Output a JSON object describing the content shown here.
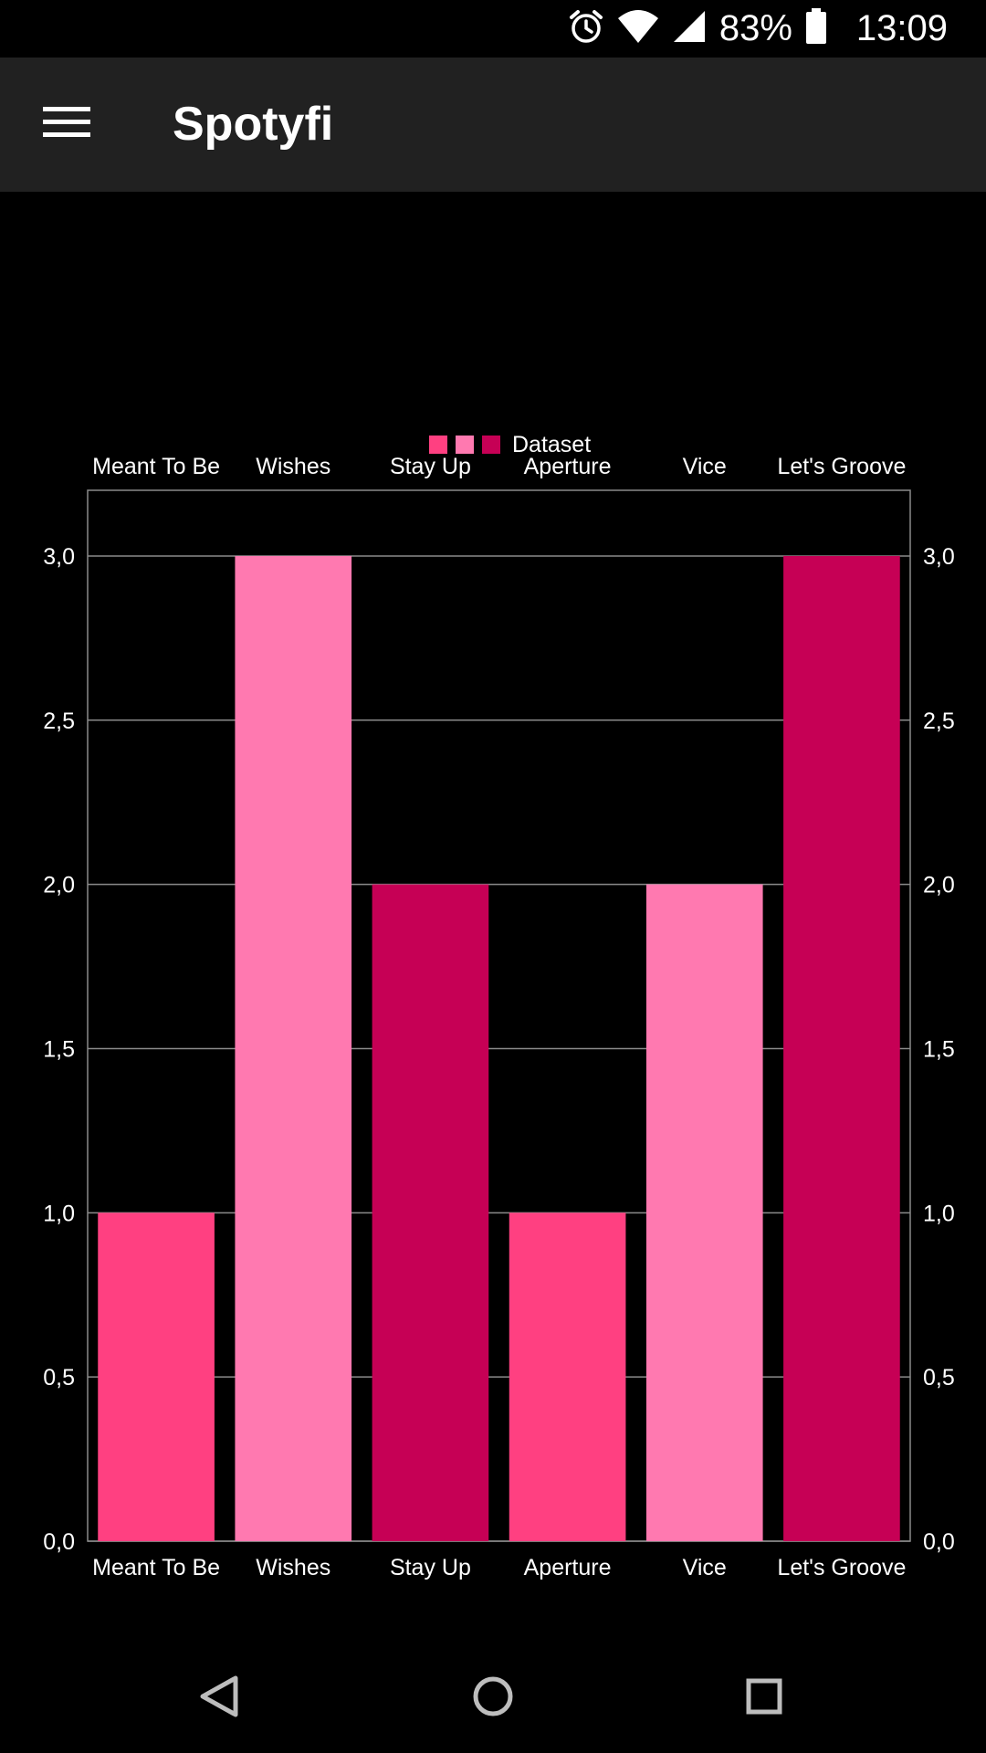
{
  "status_bar": {
    "battery": "83%",
    "time": "13:09",
    "icons": [
      "alarm-icon",
      "wifi-icon",
      "signal-icon",
      "battery-icon"
    ]
  },
  "app_bar": {
    "title": "Spotyfi",
    "menu_icon": "hamburger-menu-icon"
  },
  "colors": {
    "background": "#000000",
    "app_bar": "#212121",
    "grid": "#8a8a8a",
    "series": [
      "#ff4081",
      "#ff79b0",
      "#c60055"
    ]
  },
  "chart_data": {
    "type": "bar",
    "categories": [
      "Meant To Be",
      "Wishes",
      "Stay Up",
      "Aperture",
      "Vice",
      "Let's Groove"
    ],
    "series": [
      {
        "name": "Dataset",
        "values": [
          1,
          3,
          2,
          1,
          2,
          3
        ]
      }
    ],
    "bar_colors": [
      "#ff4081",
      "#ff79b0",
      "#c60055",
      "#ff4081",
      "#ff79b0",
      "#c60055"
    ],
    "legend": {
      "label": "Dataset",
      "position": "top-center"
    },
    "y_ticks": [
      "0,0",
      "0,5",
      "1,0",
      "1,5",
      "2,0",
      "2,5",
      "3,0"
    ],
    "y_tick_values": [
      0,
      0.5,
      1,
      1.5,
      2,
      2.5,
      3
    ],
    "ylim": [
      0,
      3.2
    ],
    "x_labels_top": true,
    "x_labels_bottom": true,
    "y_axis_left": true,
    "y_axis_right": true,
    "grid": true
  },
  "nav_bar": {
    "icons": [
      "back-icon",
      "home-icon",
      "recents-icon"
    ]
  }
}
